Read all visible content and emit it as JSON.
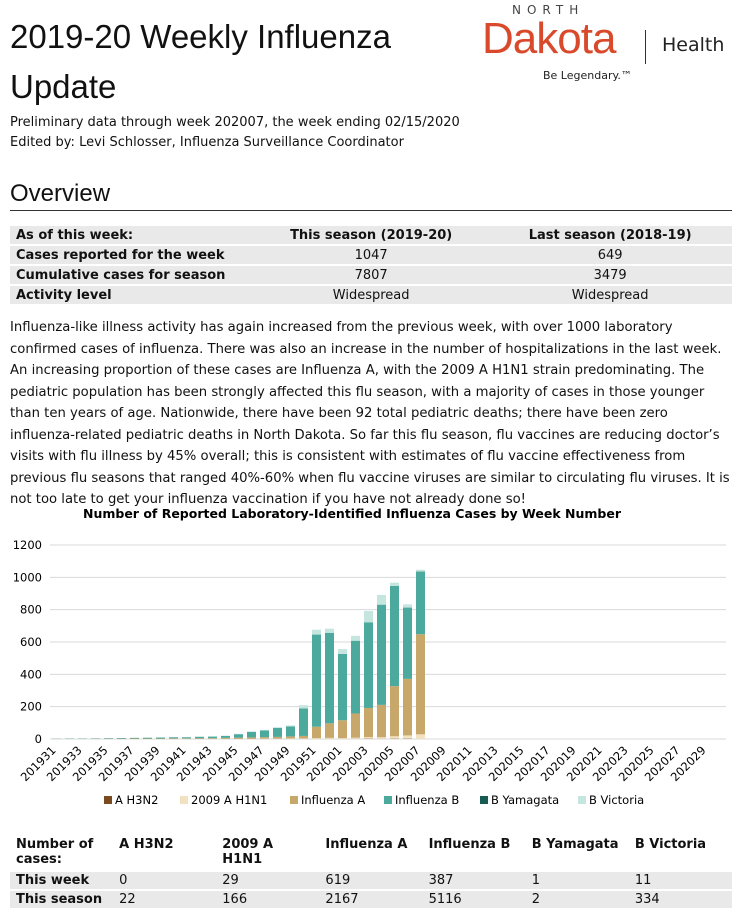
{
  "header": {
    "title": "2019-20 Weekly Influenza Update",
    "subtitle": "Preliminary data through week 202007, the week ending 02/15/2020",
    "editor": "Edited by: Levi Schlosser, Influenza Surveillance Coordinator"
  },
  "logo": {
    "top": "NORTH",
    "name": "Dakota",
    "dept": "Health",
    "tagline": "Be Legendary.™"
  },
  "overview": {
    "heading": "Overview",
    "columns": [
      "As of this week:",
      "This season (2019-20)",
      "Last season (2018-19)"
    ],
    "rows": [
      [
        "Cases reported for the week",
        1047,
        649
      ],
      [
        "Cumulative cases for season",
        7807,
        3479
      ],
      [
        "Activity level",
        "Widespread",
        "Widespread"
      ]
    ]
  },
  "paragraph": "Influenza-like illness activity has again increased from the previous week, with over 1000 laboratory confirmed cases of influenza. There was also an increase in the number of hospitalizations in the last week. An increasing proportion of these cases are Influenza A, with the 2009 A H1N1 strain predominating. The pediatric population has been strongly affected this flu season, with a majority of cases in those younger than ten years of age. Nationwide, there have been 92 total pediatric deaths; there have been zero influenza-related pediatric deaths in North Dakota. So far this flu season, flu vaccines are reducing doctor’s visits with flu illness by 45% overall; this is consistent with estimates of flu vaccine effectiveness from previous flu seasons that ranged 40%-60% when flu vaccine viruses are similar to circulating flu viruses. It is not too late to get your influenza vaccination if you have not already done so!",
  "chart_data": {
    "type": "stacked_bar",
    "title": "Number of Reported Laboratory-Identified Influenza Cases by Week Number",
    "categories": [
      "201931",
      null,
      "201933",
      null,
      "201935",
      null,
      "201937",
      null,
      "201939",
      null,
      "201941",
      null,
      "201943",
      null,
      "201945",
      null,
      "201947",
      null,
      "201949",
      null,
      "201951",
      null,
      "202001",
      null,
      "202003",
      null,
      "202005",
      null,
      "202007",
      null,
      "202009",
      null,
      "202011",
      null,
      "202013",
      null,
      "202015",
      null,
      "202017",
      null,
      "202019",
      null,
      "202021",
      null,
      "202023",
      null,
      "202025",
      null,
      "202027",
      null,
      "202029",
      null
    ],
    "ylim": [
      0,
      1200
    ],
    "yticks": [
      0,
      200,
      400,
      600,
      800,
      1000,
      1200
    ],
    "grid": true,
    "legend": "bottom",
    "series": [
      {
        "name": "A H3N2",
        "color": "#7b4a1f",
        "values": [
          0,
          0,
          0,
          0,
          0,
          0,
          0,
          0,
          0,
          1,
          0,
          1,
          0,
          1,
          1,
          1,
          1,
          1,
          1,
          1,
          1,
          1,
          1,
          1,
          2,
          1,
          2,
          2,
          0,
          null,
          null,
          null,
          null,
          null,
          null,
          null,
          null,
          null,
          null,
          null,
          null,
          null,
          null,
          null,
          null,
          null,
          null,
          null,
          null,
          null,
          null,
          null
        ]
      },
      {
        "name": "2009 A H1N1",
        "color": "#f2e2c2",
        "values": [
          0,
          0,
          0,
          0,
          0,
          0,
          0,
          0,
          0,
          0,
          1,
          0,
          1,
          1,
          1,
          1,
          2,
          2,
          3,
          3,
          5,
          6,
          5,
          7,
          10,
          10,
          15,
          20,
          29,
          null,
          null,
          null,
          null,
          null,
          null,
          null,
          null,
          null,
          null,
          null,
          null,
          null,
          null,
          null,
          null,
          null,
          null,
          null,
          null,
          null,
          null,
          null
        ]
      },
      {
        "name": "Influenza A",
        "color": "#c8a86a",
        "values": [
          1,
          1,
          1,
          2,
          2,
          2,
          3,
          3,
          3,
          3,
          3,
          4,
          4,
          5,
          6,
          8,
          8,
          10,
          12,
          15,
          70,
          90,
          110,
          150,
          180,
          200,
          310,
          350,
          619,
          null,
          null,
          null,
          null,
          null,
          null,
          null,
          null,
          null,
          null,
          null,
          null,
          null,
          null,
          null,
          null,
          null,
          null,
          null,
          null,
          null,
          null,
          null
        ]
      },
      {
        "name": "Influenza B",
        "color": "#4baa9d",
        "values": [
          1,
          2,
          2,
          2,
          3,
          4,
          4,
          5,
          6,
          7,
          7,
          9,
          10,
          12,
          22,
          34,
          42,
          55,
          62,
          170,
          570,
          560,
          410,
          450,
          530,
          620,
          620,
          440,
          387,
          null,
          null,
          null,
          null,
          null,
          null,
          null,
          null,
          null,
          null,
          null,
          null,
          null,
          null,
          null,
          null,
          null,
          null,
          null,
          null,
          null,
          null,
          null
        ]
      },
      {
        "name": "B Yamagata",
        "color": "#175c52",
        "values": [
          0,
          0,
          0,
          0,
          0,
          0,
          0,
          0,
          0,
          0,
          0,
          0,
          0,
          0,
          0,
          0,
          0,
          0,
          0,
          0,
          0,
          0,
          0,
          0,
          0,
          0,
          0,
          1,
          1,
          null,
          null,
          null,
          null,
          null,
          null,
          null,
          null,
          null,
          null,
          null,
          null,
          null,
          null,
          null,
          null,
          null,
          null,
          null,
          null,
          null,
          null,
          null
        ]
      },
      {
        "name": "B Victoria",
        "color": "#c5e5df",
        "values": [
          0,
          0,
          0,
          0,
          0,
          0,
          1,
          0,
          1,
          1,
          1,
          1,
          1,
          2,
          2,
          3,
          3,
          5,
          6,
          20,
          30,
          25,
          30,
          30,
          70,
          60,
          20,
          20,
          11,
          null,
          null,
          null,
          null,
          null,
          null,
          null,
          null,
          null,
          null,
          null,
          null,
          null,
          null,
          null,
          null,
          null,
          null,
          null,
          null,
          null,
          null,
          null
        ]
      }
    ]
  },
  "summary_table": {
    "columns": [
      "Number of cases:",
      "A H3N2",
      "2009 A H1N1",
      "Influenza A",
      "Influenza B",
      "B Yamagata",
      "B Victoria"
    ],
    "rows": [
      [
        "This week",
        0,
        29,
        619,
        387,
        1,
        11
      ],
      [
        "This season",
        22,
        166,
        2167,
        5116,
        2,
        334
      ]
    ]
  }
}
